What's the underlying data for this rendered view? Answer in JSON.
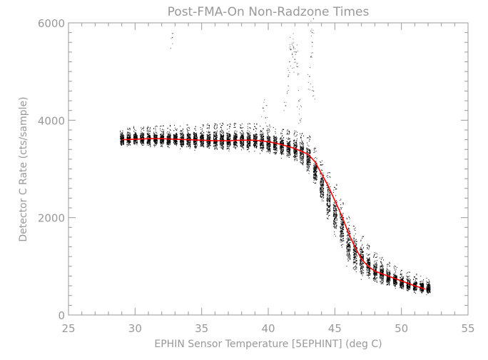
{
  "chart_data": {
    "type": "scatter",
    "title": "Post-FMA-On Non-Radzone Times",
    "xlabel": "EPHIN Sensor Temperature [5EPHINT] (deg C)",
    "ylabel": "Detector C Rate (cts/sample)",
    "xlim": [
      25,
      55
    ],
    "ylim": [
      0,
      6000
    ],
    "x_ticks": [
      "25",
      "30",
      "35",
      "40",
      "45",
      "50",
      "55"
    ],
    "y_ticks": [
      "0",
      "2000",
      "4000",
      "6000"
    ],
    "grid": false,
    "colors": {
      "points": "#000000",
      "fit": "#ff0000",
      "axes": "#999999"
    },
    "series": [
      {
        "style": "scatter-band",
        "x": [
          29.0,
          30.0,
          31.0,
          32.0,
          33.0,
          34.0,
          35.0,
          36.0,
          37.0,
          38.0,
          39.0,
          40.0,
          41.0,
          42.0,
          42.5,
          43.0,
          43.5,
          44.0,
          44.5,
          45.0,
          45.5,
          46.0,
          46.5,
          47.0,
          48.0,
          49.0,
          50.0,
          51.0,
          51.8
        ],
        "y_low": [
          3450,
          3450,
          3430,
          3420,
          3400,
          3380,
          3360,
          3340,
          3330,
          3330,
          3310,
          3270,
          3200,
          3100,
          3000,
          2850,
          2550,
          2200,
          1850,
          1550,
          1250,
          950,
          800,
          700,
          600,
          550,
          480,
          430,
          400
        ],
        "y_high": [
          3750,
          3790,
          3800,
          3810,
          3820,
          3830,
          3840,
          3850,
          3860,
          3860,
          3850,
          3800,
          3750,
          3700,
          3650,
          3600,
          3350,
          3100,
          2850,
          2600,
          2300,
          2000,
          1750,
          1550,
          1200,
          1000,
          850,
          760,
          700
        ]
      },
      {
        "style": "outliers",
        "x": [
          32.8,
          39.6,
          39.8,
          40.1,
          41.3,
          41.5,
          41.6,
          41.7,
          41.8,
          41.9,
          42.0,
          42.1,
          42.2,
          42.3,
          42.4,
          43.1,
          43.2,
          43.3,
          43.3,
          43.4
        ],
        "y": [
          5700,
          4250,
          4050,
          3900,
          4300,
          4900,
          5200,
          5450,
          5350,
          5500,
          5250,
          5400,
          5100,
          4400,
          4000,
          4900,
          5300,
          5600,
          5800,
          4600
        ]
      },
      {
        "style": "fit-line",
        "x": [
          29.0,
          30.0,
          31.0,
          32.0,
          33.0,
          34.0,
          35.0,
          36.0,
          37.0,
          38.0,
          39.0,
          40.0,
          41.0,
          42.0,
          43.0,
          43.5,
          44.0,
          44.5,
          45.0,
          45.5,
          46.0,
          46.5,
          47.0,
          47.5,
          48.0,
          49.0,
          50.0,
          51.0,
          51.8
        ],
        "y": [
          3600,
          3610,
          3620,
          3620,
          3610,
          3600,
          3590,
          3580,
          3580,
          3590,
          3590,
          3560,
          3500,
          3420,
          3300,
          3150,
          2900,
          2650,
          2350,
          2050,
          1700,
          1400,
          1150,
          1000,
          900,
          800,
          700,
          600,
          530
        ]
      }
    ]
  }
}
